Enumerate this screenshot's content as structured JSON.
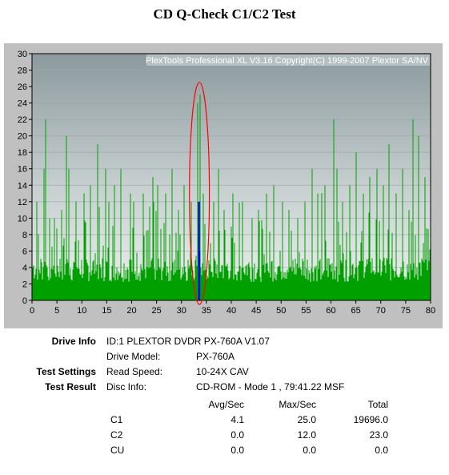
{
  "title": "CD Q-Check C1/C2 Test",
  "chart_data": {
    "type": "bar",
    "watermark": "PlexTools Professional XL V3.16 Copyright(C) 1999-2007 Plextor SA/NV",
    "xlim": [
      0,
      80
    ],
    "ylim": [
      0,
      30
    ],
    "x_ticks": [
      0,
      5,
      10,
      15,
      20,
      25,
      30,
      35,
      40,
      45,
      50,
      55,
      60,
      65,
      70,
      75,
      80
    ],
    "y_ticks": [
      0,
      2,
      4,
      6,
      8,
      10,
      12,
      14,
      16,
      18,
      20,
      22,
      24,
      26,
      28,
      30
    ],
    "series": [
      {
        "name": "C1",
        "color": "#00a000",
        "baseline_typical": 4.1,
        "max": 25.0,
        "peaks": [
          [
            1.0,
            12
          ],
          [
            2.4,
            16
          ],
          [
            2.8,
            22
          ],
          [
            4.5,
            10
          ],
          [
            5.9,
            11
          ],
          [
            6.9,
            20
          ],
          [
            7.4,
            16
          ],
          [
            8.9,
            12
          ],
          [
            10.5,
            13
          ],
          [
            11.8,
            14
          ],
          [
            13.1,
            19
          ],
          [
            14.8,
            16
          ],
          [
            15.5,
            12
          ],
          [
            16.6,
            14
          ],
          [
            17.8,
            16
          ],
          [
            19.7,
            13
          ],
          [
            20.4,
            12
          ],
          [
            22.4,
            13
          ],
          [
            24.3,
            15
          ],
          [
            25.2,
            14
          ],
          [
            26.8,
            13
          ],
          [
            28.1,
            16
          ],
          [
            29.4,
            11
          ],
          [
            30.5,
            14
          ],
          [
            31.9,
            12
          ],
          [
            33.3,
            24
          ],
          [
            33.7,
            25
          ],
          [
            34.3,
            13
          ],
          [
            36.4,
            12
          ],
          [
            37.5,
            16
          ],
          [
            38.6,
            11
          ],
          [
            40.4,
            13
          ],
          [
            42.3,
            12
          ],
          [
            44.2,
            10
          ],
          [
            45.4,
            11
          ],
          [
            47.1,
            13
          ],
          [
            48.5,
            14
          ],
          [
            50.3,
            12
          ],
          [
            51.6,
            11
          ],
          [
            53.3,
            10
          ],
          [
            54.8,
            12
          ],
          [
            56.3,
            16
          ],
          [
            57.4,
            13
          ],
          [
            58.8,
            14
          ],
          [
            60.6,
            22
          ],
          [
            61.2,
            16
          ],
          [
            62.3,
            12
          ],
          [
            63.8,
            14
          ],
          [
            65.1,
            18
          ],
          [
            66.5,
            13
          ],
          [
            67.8,
            15
          ],
          [
            69.3,
            16
          ],
          [
            70.5,
            14
          ],
          [
            71.6,
            19
          ],
          [
            73.1,
            13
          ],
          [
            74.4,
            16
          ],
          [
            75.6,
            11
          ],
          [
            76.5,
            22
          ],
          [
            77.6,
            20
          ],
          [
            78.9,
            15
          ]
        ]
      },
      {
        "name": "C2",
        "color": "#0000ff",
        "max": 12.0,
        "peaks": [
          [
            33.5,
            12
          ],
          [
            33.6,
            6
          ]
        ]
      }
    ],
    "annotation": {
      "type": "ellipse",
      "color": "#ff0000",
      "x_center": 33.6,
      "y_center": 13.0,
      "x_radius": 2.0,
      "y_radius": 13.5
    }
  },
  "info": {
    "drive_info_label": "Drive Info",
    "drive_id": "ID:1 PLEXTOR DVDR PX-760A V1.07",
    "drive_model_label": "Drive Model:",
    "drive_model": "PX-760A",
    "test_settings_label": "Test Settings",
    "read_speed_label": "Read Speed:",
    "read_speed": "10-24X CAV",
    "test_result_label": "Test Result",
    "disc_info_label": "Disc Info:",
    "disc_info": "CD-ROM - Mode 1 , 79:41.22 MSF"
  },
  "results": {
    "headers": [
      "Avg/Sec",
      "Max/Sec",
      "Total"
    ],
    "rows": [
      {
        "name": "C1",
        "avg": "4.1",
        "max": "25.0",
        "total": "19696.0"
      },
      {
        "name": "C2",
        "avg": "0.0",
        "max": "12.0",
        "total": "23.0"
      },
      {
        "name": "CU",
        "avg": "0.0",
        "max": "0.0",
        "total": "0.0"
      }
    ]
  }
}
